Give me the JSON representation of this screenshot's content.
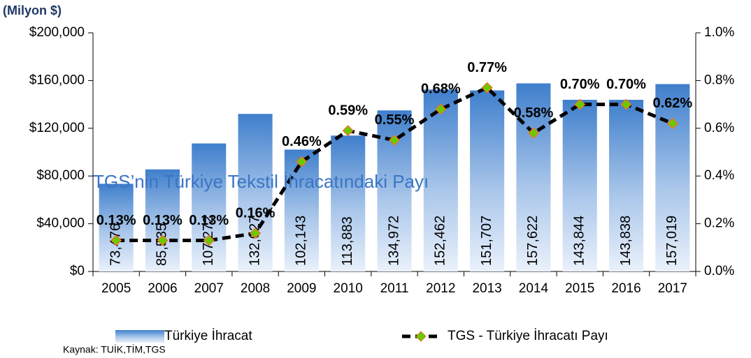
{
  "chart_data": {
    "type": "bar",
    "title": "TGS’nin Türkiye Tekstil İhracatındaki Payı",
    "y_label": "(Milyon $)",
    "source": "Kaynak: TUİK,TİM,TGS",
    "categories": [
      "2005",
      "2006",
      "2007",
      "2008",
      "2009",
      "2010",
      "2011",
      "2012",
      "2013",
      "2014",
      "2015",
      "2016",
      "2017"
    ],
    "series": [
      {
        "name": "Türkiye İhracat",
        "type": "bar",
        "color": "#4a86cf",
        "values": [
          73476,
          85535,
          107272,
          132027,
          102143,
          113883,
          134972,
          152462,
          151707,
          157622,
          143844,
          143838,
          157019
        ],
        "value_labels": [
          "73,476",
          "85,535",
          "107,272",
          "132,027",
          "102,143",
          "113,883",
          "134,972",
          "152,462",
          "151,707",
          "157,622",
          "143,844",
          "143,838",
          "157,019"
        ]
      },
      {
        "name": "TGS - Türkiye İhracatı Payı",
        "type": "line",
        "axis": "y2",
        "color": "#000000",
        "marker_color": "#66cc00",
        "marker_edge": "#e87722",
        "values": [
          0.13,
          0.13,
          0.13,
          0.16,
          0.46,
          0.59,
          0.55,
          0.68,
          0.77,
          0.58,
          0.7,
          0.7,
          0.62
        ],
        "value_labels": [
          "0.13%",
          "0.13%",
          "0.13%",
          "0.16%",
          "0.46%",
          "0.59%",
          "0.55%",
          "0.68%",
          "0.77%",
          "0.58%",
          "0.70%",
          "0.70%",
          "0.62%"
        ]
      }
    ],
    "ylim": [
      0,
      200000
    ],
    "yticks": [
      {
        "value": 0,
        "label": "$0"
      },
      {
        "value": 40000,
        "label": "$40,000"
      },
      {
        "value": 80000,
        "label": "$80,000"
      },
      {
        "value": 120000,
        "label": "$120,000"
      },
      {
        "value": 160000,
        "label": "$160,000"
      },
      {
        "value": 200000,
        "label": "$200,000"
      }
    ],
    "y2lim": [
      0,
      1.0
    ],
    "y2ticks": [
      {
        "value": 0,
        "label": "0.0%"
      },
      {
        "value": 0.2,
        "label": "0.2%"
      },
      {
        "value": 0.4,
        "label": "0.4%"
      },
      {
        "value": 0.6,
        "label": "0.6%"
      },
      {
        "value": 0.8,
        "label": "0.8%"
      },
      {
        "value": 1.0,
        "label": "1.0%"
      }
    ],
    "legend": "bottom"
  }
}
